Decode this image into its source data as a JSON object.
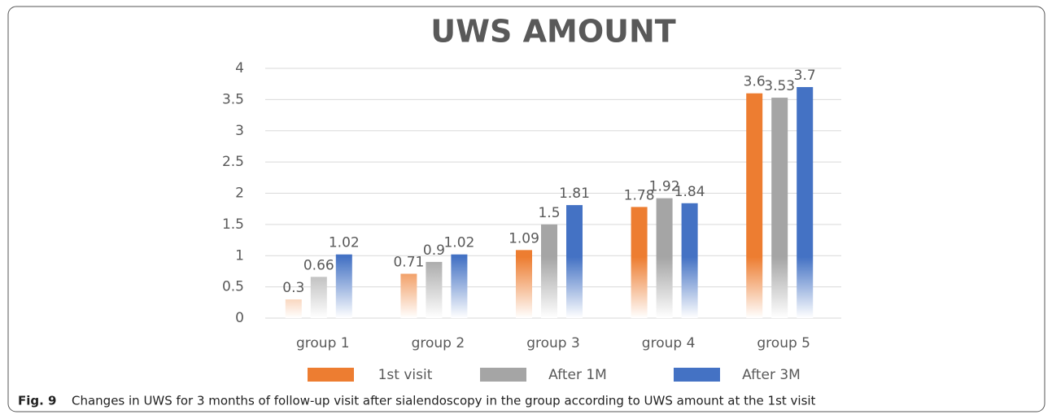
{
  "chart_data": {
    "type": "bar",
    "title": "UWS AMOUNT",
    "categories": [
      "group 1",
      "group 2",
      "group 3",
      "group 4",
      "group 5"
    ],
    "series": [
      {
        "name": "1st visit",
        "color": "#ed7d31",
        "values": [
          0.3,
          0.71,
          1.09,
          1.78,
          3.6
        ]
      },
      {
        "name": "After 1M",
        "color": "#a5a5a5",
        "values": [
          0.66,
          0.9,
          1.5,
          1.92,
          3.53
        ]
      },
      {
        "name": "After 3M",
        "color": "#4472c4",
        "values": [
          1.02,
          1.02,
          1.81,
          1.84,
          3.7
        ]
      }
    ],
    "ylim": [
      0,
      4
    ],
    "yticks": [
      0,
      0.5,
      1,
      1.5,
      2,
      2.5,
      3,
      3.5,
      4
    ],
    "grid": true,
    "legend": "bottom"
  },
  "caption": {
    "label": "Fig. 9",
    "text": "Changes in UWS for 3 months of follow-up visit after sialendoscopy in the group according to UWS amount at the 1st visit"
  }
}
